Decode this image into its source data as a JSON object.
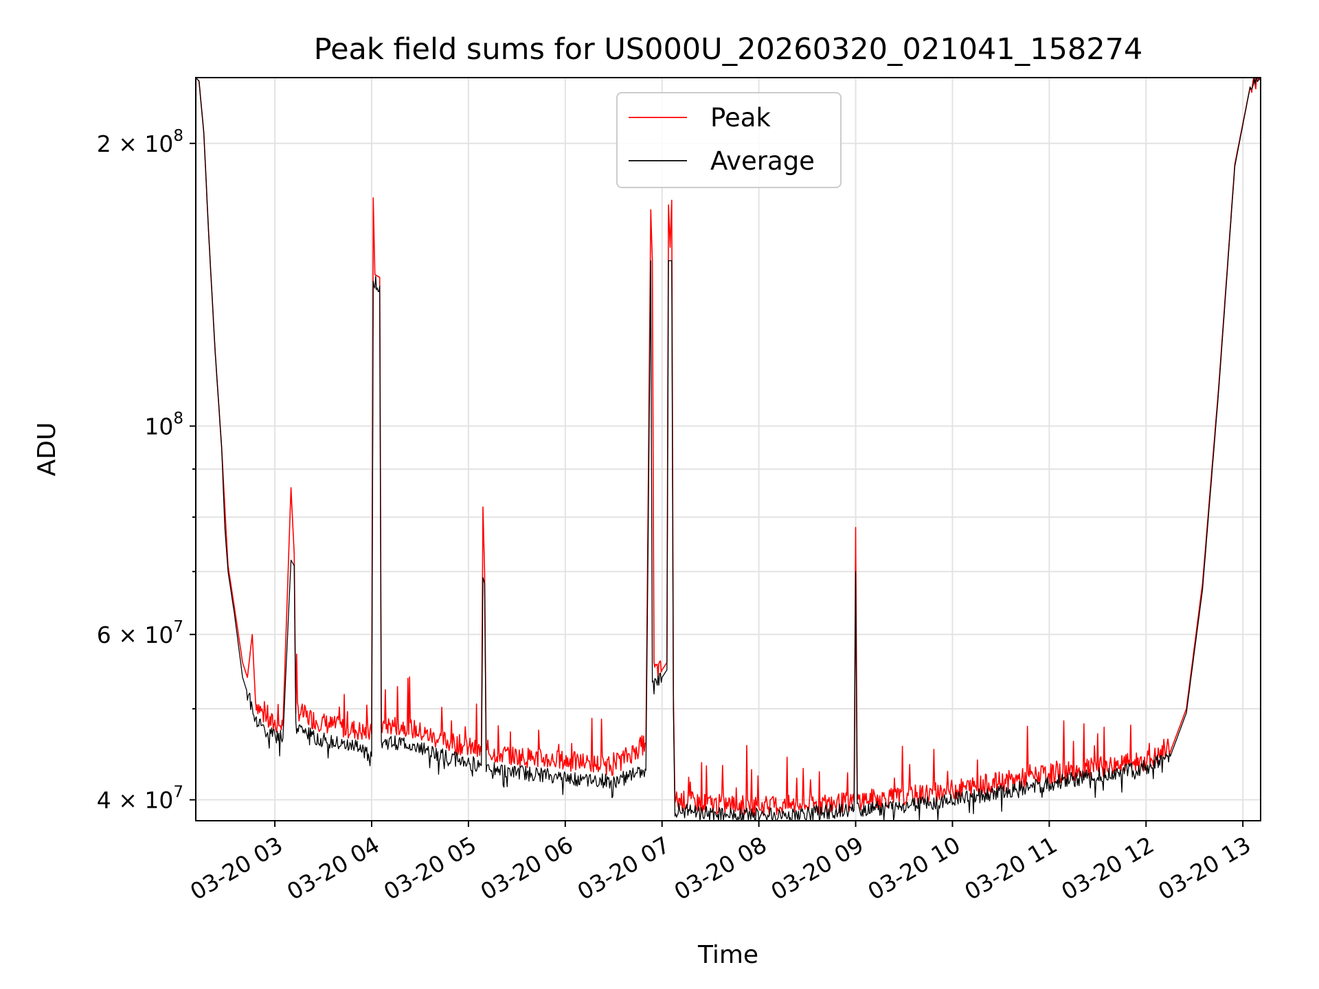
{
  "chart_data": {
    "type": "line",
    "title": "Peak field sums for US000U_20260320_021041_158274",
    "xlabel": "Time",
    "ylabel": "ADU",
    "y_scale": "log",
    "ylim": [
      38000000,
      235000000
    ],
    "xlim": [
      "2026-03-20 02:11",
      "2026-03-20 13:11"
    ],
    "grid": true,
    "legend_position": "top-center",
    "x_ticks": [
      "03-20 03",
      "03-20 04",
      "03-20 05",
      "03-20 06",
      "03-20 07",
      "03-20 08",
      "03-20 09",
      "03-20 10",
      "03-20 11",
      "03-20 12",
      "03-20 13"
    ],
    "y_ticks_major": [
      {
        "value": 40000000,
        "mantissa": "4",
        "exp": "7"
      },
      {
        "value": 60000000,
        "mantissa": "6",
        "exp": "7"
      },
      {
        "value": 100000000,
        "mantissa": "",
        "exp": "8"
      },
      {
        "value": 200000000,
        "mantissa": "2",
        "exp": "8"
      }
    ],
    "y_ticks_minor": [
      50000000,
      70000000,
      80000000,
      90000000
    ],
    "series": [
      {
        "name": "Peak",
        "color": "#ff0000",
        "points": [
          [
            "2026-03-20 02:11",
            235000000
          ],
          [
            "2026-03-20 02:13",
            233000000
          ],
          [
            "2026-03-20 02:16",
            205000000
          ],
          [
            "2026-03-20 02:19",
            160000000
          ],
          [
            "2026-03-20 02:23",
            120000000
          ],
          [
            "2026-03-20 02:27",
            95000000
          ],
          [
            "2026-03-20 02:29",
            82000000
          ],
          [
            "2026-03-20 02:31",
            71000000
          ],
          [
            "2026-03-20 02:35",
            64000000
          ],
          [
            "2026-03-20 02:40",
            56000000
          ],
          [
            "2026-03-20 02:43",
            54000000
          ],
          [
            "2026-03-20 02:46",
            60000000
          ],
          [
            "2026-03-20 02:48",
            51000000
          ],
          [
            "2026-03-20 02:55",
            48500000
          ],
          [
            "2026-03-20 03:05",
            48000000
          ],
          [
            "2026-03-20 03:10",
            86000000
          ],
          [
            "2026-03-20 03:12",
            73000000
          ],
          [
            "2026-03-20 03:13",
            50000000
          ],
          [
            "2026-03-20 03:20",
            49000000
          ],
          [
            "2026-03-20 03:35",
            48000000
          ],
          [
            "2026-03-20 03:50",
            47500000
          ],
          [
            "2026-03-20 04:00",
            47000000
          ],
          [
            "2026-03-20 04:01",
            175000000
          ],
          [
            "2026-03-20 04:02",
            145000000
          ],
          [
            "2026-03-20 04:05",
            144000000
          ],
          [
            "2026-03-20 04:06",
            48000000
          ],
          [
            "2026-03-20 04:20",
            48000000
          ],
          [
            "2026-03-20 04:40",
            46500000
          ],
          [
            "2026-03-20 05:00",
            45500000
          ],
          [
            "2026-03-20 05:08",
            45000000
          ],
          [
            "2026-03-20 05:09",
            82000000
          ],
          [
            "2026-03-20 05:10",
            70000000
          ],
          [
            "2026-03-20 05:11",
            45000000
          ],
          [
            "2026-03-20 05:30",
            44500000
          ],
          [
            "2026-03-20 06:00",
            44000000
          ],
          [
            "2026-03-20 06:30",
            43500000
          ],
          [
            "2026-03-20 06:50",
            46000000
          ],
          [
            "2026-03-20 06:53",
            170000000
          ],
          [
            "2026-03-20 06:54",
            150000000
          ],
          [
            "2026-03-20 06:55",
            55000000
          ],
          [
            "2026-03-20 07:00",
            55000000
          ],
          [
            "2026-03-20 07:03",
            56000000
          ],
          [
            "2026-03-20 07:04",
            172000000
          ],
          [
            "2026-03-20 07:05",
            155000000
          ],
          [
            "2026-03-20 07:06",
            174000000
          ],
          [
            "2026-03-20 07:07",
            52000000
          ],
          [
            "2026-03-20 07:08",
            40000000
          ],
          [
            "2026-03-20 07:30",
            39600000
          ],
          [
            "2026-03-20 08:00",
            39400000
          ],
          [
            "2026-03-20 08:30",
            39500000
          ],
          [
            "2026-03-20 08:59",
            39800000
          ],
          [
            "2026-03-20 09:00",
            78000000
          ],
          [
            "2026-03-20 09:01",
            40000000
          ],
          [
            "2026-03-20 09:30",
            40300000
          ],
          [
            "2026-03-20 10:00",
            41000000
          ],
          [
            "2026-03-20 10:30",
            41800000
          ],
          [
            "2026-03-20 11:00",
            42600000
          ],
          [
            "2026-03-20 11:30",
            43300000
          ],
          [
            "2026-03-20 12:00",
            44000000
          ],
          [
            "2026-03-20 12:15",
            45000000
          ],
          [
            "2026-03-20 12:25",
            50000000
          ],
          [
            "2026-03-20 12:35",
            68000000
          ],
          [
            "2026-03-20 12:45",
            110000000
          ],
          [
            "2026-03-20 12:55",
            190000000
          ],
          [
            "2026-03-20 13:05",
            232000000
          ],
          [
            "2026-03-20 13:11",
            235000000
          ]
        ]
      },
      {
        "name": "Average",
        "color": "#000000",
        "points": [
          [
            "2026-03-20 02:11",
            235000000
          ],
          [
            "2026-03-20 02:13",
            233000000
          ],
          [
            "2026-03-20 02:16",
            205000000
          ],
          [
            "2026-03-20 02:19",
            160000000
          ],
          [
            "2026-03-20 02:23",
            120000000
          ],
          [
            "2026-03-20 02:27",
            95000000
          ],
          [
            "2026-03-20 02:29",
            78000000
          ],
          [
            "2026-03-20 02:31",
            70000000
          ],
          [
            "2026-03-20 02:35",
            63000000
          ],
          [
            "2026-03-20 02:40",
            54000000
          ],
          [
            "2026-03-20 02:43",
            52000000
          ],
          [
            "2026-03-20 02:48",
            49000000
          ],
          [
            "2026-03-20 02:55",
            47000000
          ],
          [
            "2026-03-20 03:05",
            46500000
          ],
          [
            "2026-03-20 03:10",
            72000000
          ],
          [
            "2026-03-20 03:12",
            71000000
          ],
          [
            "2026-03-20 03:13",
            48000000
          ],
          [
            "2026-03-20 03:20",
            47000000
          ],
          [
            "2026-03-20 03:35",
            46000000
          ],
          [
            "2026-03-20 03:50",
            45500000
          ],
          [
            "2026-03-20 04:00",
            44500000
          ],
          [
            "2026-03-20 04:01",
            143000000
          ],
          [
            "2026-03-20 04:05",
            141000000
          ],
          [
            "2026-03-20 04:06",
            46000000
          ],
          [
            "2026-03-20 04:20",
            46000000
          ],
          [
            "2026-03-20 04:40",
            44800000
          ],
          [
            "2026-03-20 05:00",
            43800000
          ],
          [
            "2026-03-20 05:08",
            43500000
          ],
          [
            "2026-03-20 05:09",
            69000000
          ],
          [
            "2026-03-20 05:10",
            68000000
          ],
          [
            "2026-03-20 05:11",
            43500000
          ],
          [
            "2026-03-20 05:30",
            42800000
          ],
          [
            "2026-03-20 06:00",
            42200000
          ],
          [
            "2026-03-20 06:30",
            41800000
          ],
          [
            "2026-03-20 06:50",
            43000000
          ],
          [
            "2026-03-20 06:53",
            150000000
          ],
          [
            "2026-03-20 06:54",
            53000000
          ],
          [
            "2026-03-20 07:00",
            54000000
          ],
          [
            "2026-03-20 07:03",
            55000000
          ],
          [
            "2026-03-20 07:04",
            150000000
          ],
          [
            "2026-03-20 07:06",
            150000000
          ],
          [
            "2026-03-20 07:07",
            50000000
          ],
          [
            "2026-03-20 07:08",
            39000000
          ],
          [
            "2026-03-20 07:30",
            38600000
          ],
          [
            "2026-03-20 08:00",
            38500000
          ],
          [
            "2026-03-20 08:30",
            38700000
          ],
          [
            "2026-03-20 08:59",
            39000000
          ],
          [
            "2026-03-20 09:00",
            70000000
          ],
          [
            "2026-03-20 09:01",
            39000000
          ],
          [
            "2026-03-20 09:30",
            39400000
          ],
          [
            "2026-03-20 10:00",
            40000000
          ],
          [
            "2026-03-20 10:30",
            40800000
          ],
          [
            "2026-03-20 11:00",
            41600000
          ],
          [
            "2026-03-20 11:30",
            42500000
          ],
          [
            "2026-03-20 12:00",
            43300000
          ],
          [
            "2026-03-20 12:15",
            44500000
          ],
          [
            "2026-03-20 12:25",
            49500000
          ],
          [
            "2026-03-20 12:35",
            67000000
          ],
          [
            "2026-03-20 12:45",
            109000000
          ],
          [
            "2026-03-20 12:55",
            189000000
          ],
          [
            "2026-03-20 13:05",
            232000000
          ],
          [
            "2026-03-20 13:11",
            235000000
          ]
        ]
      }
    ]
  }
}
